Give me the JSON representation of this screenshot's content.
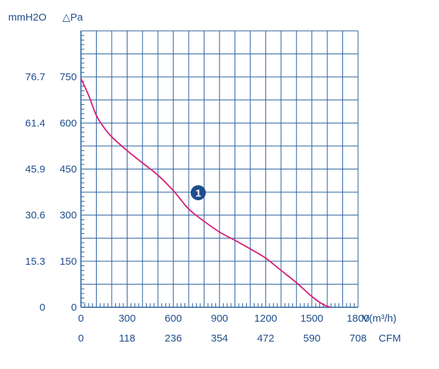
{
  "chart_data": {
    "type": "line",
    "units": {
      "left_outer": "mmH2O",
      "left_inner": "△Pa",
      "x_primary": "V(m³/h)",
      "x_secondary": "CFM"
    },
    "y_ticks_pa": [
      "750",
      "600",
      "450",
      "300",
      "150",
      "0"
    ],
    "y_ticks_mmh2o": [
      "76.7",
      "61.4",
      "45.9",
      "30.6",
      "15.3",
      "0"
    ],
    "x_ticks_m3h": [
      "0",
      "300",
      "600",
      "900",
      "1200",
      "1500",
      "1800"
    ],
    "x_ticks_cfm": [
      "0",
      "118",
      "236",
      "354",
      "472",
      "590",
      "708"
    ],
    "xlim": [
      0,
      1800
    ],
    "ylim": [
      0,
      900
    ],
    "grid": true,
    "series": [
      {
        "marker_label": "1",
        "color": "#d6237a",
        "x": [
          0,
          50,
          100,
          150,
          200,
          300,
          400,
          500,
          600,
          700,
          800,
          900,
          1000,
          1100,
          1200,
          1300,
          1400,
          1500,
          1570,
          1620
        ],
        "y": [
          745,
          690,
          625,
          585,
          555,
          510,
          470,
          430,
          380,
          320,
          280,
          245,
          218,
          190,
          160,
          120,
          80,
          35,
          10,
          0
        ]
      }
    ]
  },
  "colors": {
    "grid": "#1f5a9a",
    "labels": "#1f4e8c",
    "curve": "#d6237a",
    "badge": "#1f4e8c"
  }
}
